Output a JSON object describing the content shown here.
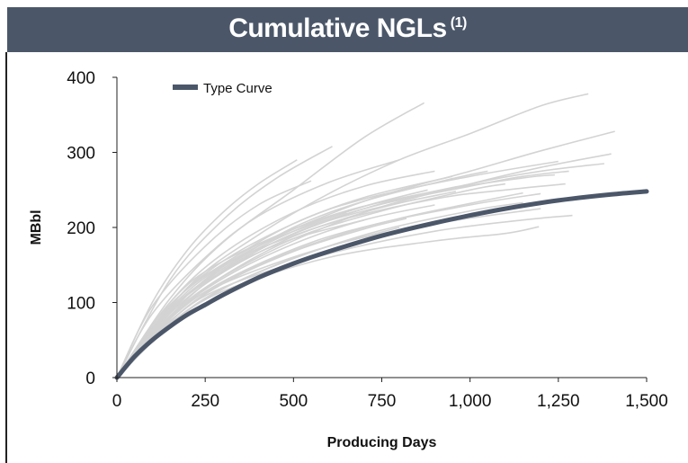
{
  "header": {
    "title": "Cumulative NGLs",
    "footnote": "(1)",
    "bg_color": "#4b5769"
  },
  "chart_data": {
    "type": "line",
    "title": "Cumulative NGLs (1)",
    "xlabel": "Producing Days",
    "ylabel": "MBbl",
    "xlim": [
      0,
      1500
    ],
    "ylim": [
      0,
      400
    ],
    "x_ticks": [
      0,
      250,
      500,
      750,
      1000,
      1250,
      1500
    ],
    "x_tick_labels": [
      "0",
      "250",
      "500",
      "750",
      "1,000",
      "1,250",
      "1,500"
    ],
    "y_ticks": [
      0,
      100,
      200,
      300,
      400
    ],
    "y_tick_labels": [
      "0",
      "100",
      "200",
      "300",
      "400"
    ],
    "grid": false,
    "legend": {
      "position": "top-left",
      "entries": [
        "Type Curve"
      ]
    },
    "series": [
      {
        "name": "Type Curve",
        "color": "#4b5769",
        "x": [
          0,
          50,
          100,
          150,
          200,
          250,
          300,
          400,
          500,
          600,
          750,
          900,
          1000,
          1100,
          1250,
          1400,
          1500
        ],
        "y": [
          0,
          28,
          50,
          68,
          84,
          97,
          110,
          133,
          152,
          168,
          189,
          206,
          216,
          225,
          236,
          244,
          248
        ]
      }
    ],
    "well_curves": {
      "color": "#d3d3d3",
      "curves": [
        {
          "x": [
            0,
            150,
            300,
            450,
            610
          ],
          "y": [
            0,
            130,
            210,
            265,
            308
          ]
        },
        {
          "x": [
            0,
            150,
            300,
            500,
            700,
            870
          ],
          "y": [
            0,
            105,
            180,
            250,
            320,
            366
          ]
        },
        {
          "x": [
            0,
            200,
            400,
            600,
            800,
            1000,
            1200,
            1335
          ],
          "y": [
            0,
            120,
            190,
            245,
            290,
            325,
            362,
            378
          ]
        },
        {
          "x": [
            0,
            200,
            400,
            700,
            1000,
            1200,
            1410
          ],
          "y": [
            0,
            110,
            175,
            235,
            275,
            302,
            328
          ]
        },
        {
          "x": [
            0,
            200,
            400,
            700,
            1000,
            1200,
            1400
          ],
          "y": [
            0,
            100,
            160,
            220,
            258,
            280,
            298
          ]
        },
        {
          "x": [
            0,
            200,
            400,
            700,
            1000,
            1200,
            1380
          ],
          "y": [
            0,
            105,
            170,
            225,
            258,
            275,
            285
          ]
        },
        {
          "x": [
            0,
            200,
            400,
            700,
            1000,
            1150,
            1280
          ],
          "y": [
            0,
            110,
            175,
            225,
            255,
            268,
            275
          ]
        },
        {
          "x": [
            0,
            150,
            300,
            600,
            900,
            1150,
            1240
          ],
          "y": [
            0,
            100,
            155,
            215,
            248,
            266,
            270
          ]
        },
        {
          "x": [
            0,
            150,
            300,
            600,
            900,
            1100,
            1270
          ],
          "y": [
            0,
            95,
            150,
            205,
            238,
            250,
            258
          ]
        },
        {
          "x": [
            0,
            200,
            400,
            700,
            1000,
            1200
          ],
          "y": [
            0,
            95,
            150,
            200,
            230,
            245
          ]
        },
        {
          "x": [
            0,
            200,
            400,
            700,
            1000,
            1150
          ],
          "y": [
            0,
            90,
            140,
            190,
            222,
            233
          ]
        },
        {
          "x": [
            0,
            150,
            300,
            600,
            900,
            1200
          ],
          "y": [
            0,
            80,
            125,
            175,
            205,
            225
          ]
        },
        {
          "x": [
            0,
            150,
            300,
            600,
            900,
            1150,
            1290
          ],
          "y": [
            0,
            75,
            120,
            165,
            195,
            210,
            216
          ]
        },
        {
          "x": [
            0,
            150,
            300,
            600,
            900,
            1100,
            1195
          ],
          "y": [
            0,
            70,
            115,
            160,
            182,
            192,
            201
          ]
        },
        {
          "x": [
            0,
            100,
            200,
            300,
            400,
            510
          ],
          "y": [
            0,
            100,
            170,
            220,
            258,
            290
          ]
        },
        {
          "x": [
            0,
            100,
            250,
            400,
            550
          ],
          "y": [
            0,
            95,
            175,
            230,
            262
          ]
        },
        {
          "x": [
            0,
            100,
            250,
            400,
            600,
            800
          ],
          "y": [
            0,
            85,
            160,
            215,
            260,
            290
          ]
        },
        {
          "x": [
            0,
            150,
            300,
            500,
            700,
            900
          ],
          "y": [
            0,
            100,
            165,
            220,
            255,
            275
          ]
        },
        {
          "x": [
            0,
            150,
            300,
            500,
            700,
            950
          ],
          "y": [
            0,
            95,
            155,
            205,
            240,
            268
          ]
        },
        {
          "x": [
            0,
            150,
            300,
            500,
            700,
            880
          ],
          "y": [
            0,
            90,
            145,
            195,
            228,
            250
          ]
        },
        {
          "x": [
            0,
            150,
            300,
            500,
            700,
            850
          ],
          "y": [
            0,
            85,
            140,
            188,
            220,
            238
          ]
        },
        {
          "x": [
            0,
            150,
            300,
            500,
            700,
            900
          ],
          "y": [
            0,
            80,
            132,
            178,
            210,
            230
          ]
        },
        {
          "x": [
            0,
            150,
            300,
            500,
            700,
            820
          ],
          "y": [
            0,
            75,
            125,
            168,
            198,
            212
          ]
        },
        {
          "x": [
            0,
            150,
            300,
            450,
            600,
            800
          ],
          "y": [
            0,
            72,
            118,
            150,
            175,
            200
          ]
        },
        {
          "x": [
            0,
            100,
            200,
            350,
            500,
            650
          ],
          "y": [
            0,
            70,
            118,
            165,
            198,
            220
          ]
        },
        {
          "x": [
            0,
            100,
            200,
            350,
            500,
            700
          ],
          "y": [
            0,
            65,
            110,
            155,
            185,
            210
          ]
        },
        {
          "x": [
            0,
            150,
            300,
            500,
            700,
            950,
            1050
          ],
          "y": [
            0,
            88,
            145,
            200,
            235,
            265,
            275
          ]
        },
        {
          "x": [
            0,
            150,
            300,
            500,
            750,
            1000,
            1100
          ],
          "y": [
            0,
            82,
            135,
            185,
            222,
            250,
            258
          ]
        },
        {
          "x": [
            0,
            150,
            300,
            550,
            800,
            1000,
            1150
          ],
          "y": [
            0,
            78,
            128,
            180,
            212,
            232,
            246
          ]
        },
        {
          "x": [
            0,
            150,
            300,
            500,
            700,
            1000,
            1250
          ],
          "y": [
            0,
            92,
            150,
            205,
            238,
            268,
            288
          ]
        },
        {
          "x": [
            0,
            150,
            300,
            500,
            700,
            960
          ],
          "y": [
            0,
            90,
            142,
            192,
            222,
            248
          ]
        }
      ]
    }
  }
}
